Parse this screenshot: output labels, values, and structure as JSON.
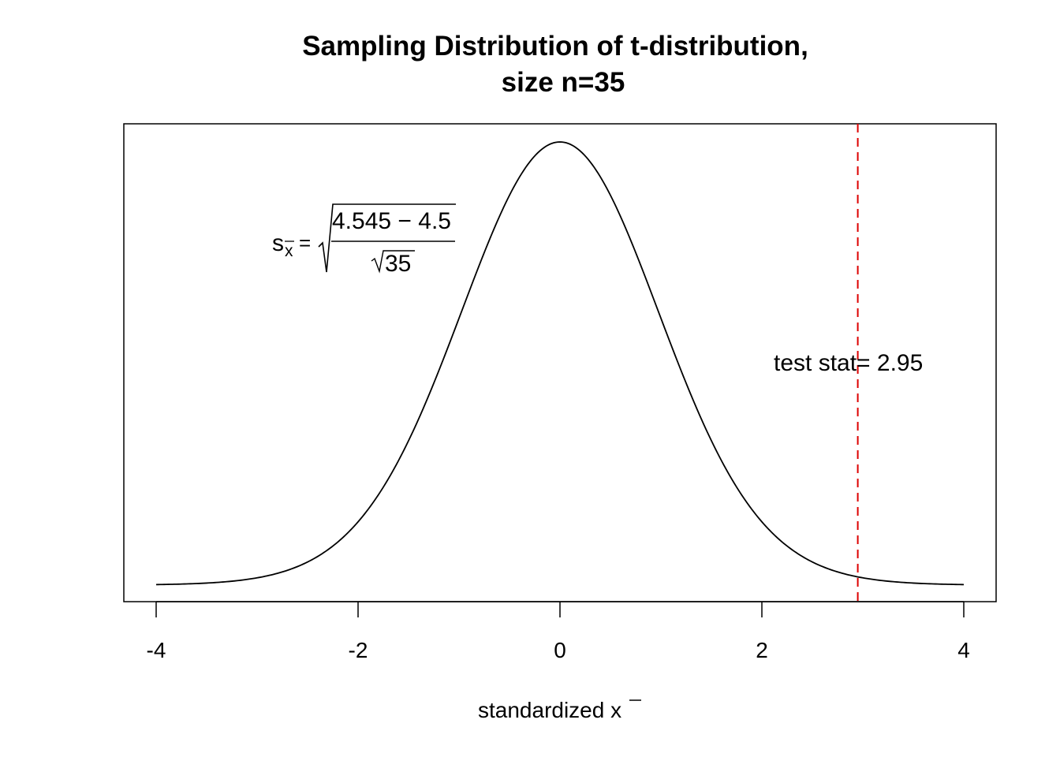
{
  "chart_data": {
    "type": "line",
    "title_line1": "Sampling Distribution of t-distribution,",
    "title_line2": "size n=35",
    "xlabel_text": "standardized ",
    "xlabel_symbol": "x",
    "ylabel": "",
    "xlim": [
      -4,
      4
    ],
    "x_ticks": [
      -4,
      -2,
      0,
      2,
      4
    ],
    "tick_labels": [
      "-4",
      "-2",
      "0",
      "2",
      "4"
    ],
    "series": [
      {
        "distribution": "t",
        "df": 34,
        "x_range": [
          -4,
          4
        ],
        "color": "#000000"
      }
    ],
    "test_stat_line": {
      "x": 2.95,
      "color": "#dd0000",
      "style": "dashed"
    },
    "annotation": "test stat= 2.95",
    "formula": {
      "lhs": "s",
      "lhs_sub": "x",
      "numerator": "4.545 − 4.5",
      "denominator": "35"
    },
    "grid": false,
    "legend": "none"
  }
}
